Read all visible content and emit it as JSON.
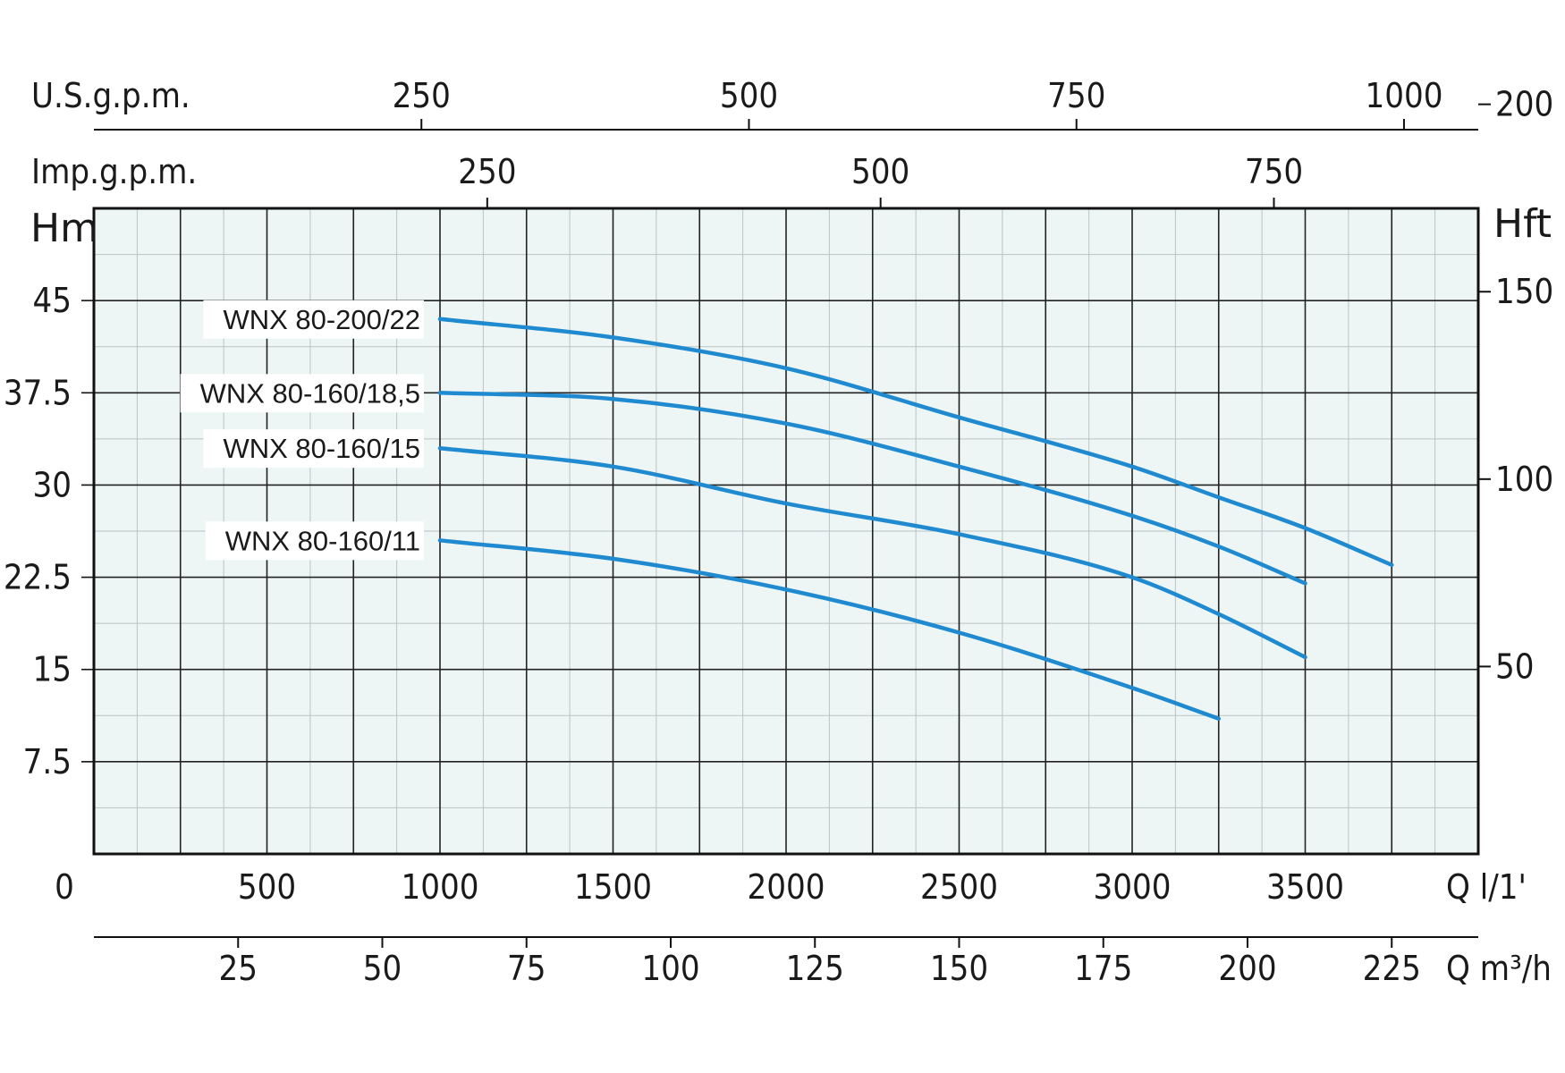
{
  "chart_data": {
    "type": "line",
    "x_unit_label": "Q l/1'",
    "x_ticks_lpm": [
      "0",
      "500",
      "1000",
      "1500",
      "2000",
      "2500",
      "3000",
      "3500"
    ],
    "x_range_lpm": [
      0,
      4000
    ],
    "y_label_left": "Hm",
    "y_ticks_m": [
      "7.5",
      "15",
      "22.5",
      "30",
      "37.5",
      "45"
    ],
    "y_range_m": [
      0,
      52.5
    ],
    "y_label_right": "Hft",
    "y_ticks_ft": [
      "50",
      "100",
      "150",
      "200"
    ],
    "top_axis_usgpm": {
      "label": "U.S.g.p.m.",
      "ticks": [
        "250",
        "500",
        "750",
        "1000"
      ]
    },
    "top_axis_impgpm": {
      "label": "Imp.g.p.m.",
      "ticks": [
        "250",
        "500",
        "750"
      ]
    },
    "bottom_axis_m3h": {
      "label": "Q m³/h",
      "ticks": [
        "25",
        "50",
        "75",
        "100",
        "125",
        "150",
        "175",
        "200",
        "225"
      ]
    },
    "grid": true,
    "series_color": "#1f8ad0",
    "series": [
      {
        "name": "WNX 80-200/22",
        "x": [
          1000,
          1500,
          2000,
          2500,
          3000,
          3250,
          3500,
          3750
        ],
        "y": [
          43.5,
          42.0,
          39.5,
          35.5,
          31.5,
          29.0,
          26.5,
          23.5
        ]
      },
      {
        "name": "WNX 80-160/18,5",
        "x": [
          1000,
          1500,
          2000,
          2500,
          3000,
          3250,
          3500
        ],
        "y": [
          37.5,
          37.0,
          35.0,
          31.5,
          27.5,
          25.0,
          22.0
        ]
      },
      {
        "name": "WNX 80-160/15",
        "x": [
          1000,
          1500,
          2000,
          2500,
          3000,
          3250,
          3500
        ],
        "y": [
          33.0,
          31.5,
          28.5,
          26.0,
          22.5,
          19.5,
          16.0
        ]
      },
      {
        "name": "WNX 80-160/11",
        "x": [
          1000,
          1500,
          2000,
          2500,
          3000,
          3250
        ],
        "y": [
          25.5,
          24.0,
          21.5,
          18.0,
          13.5,
          11.0
        ]
      }
    ]
  }
}
